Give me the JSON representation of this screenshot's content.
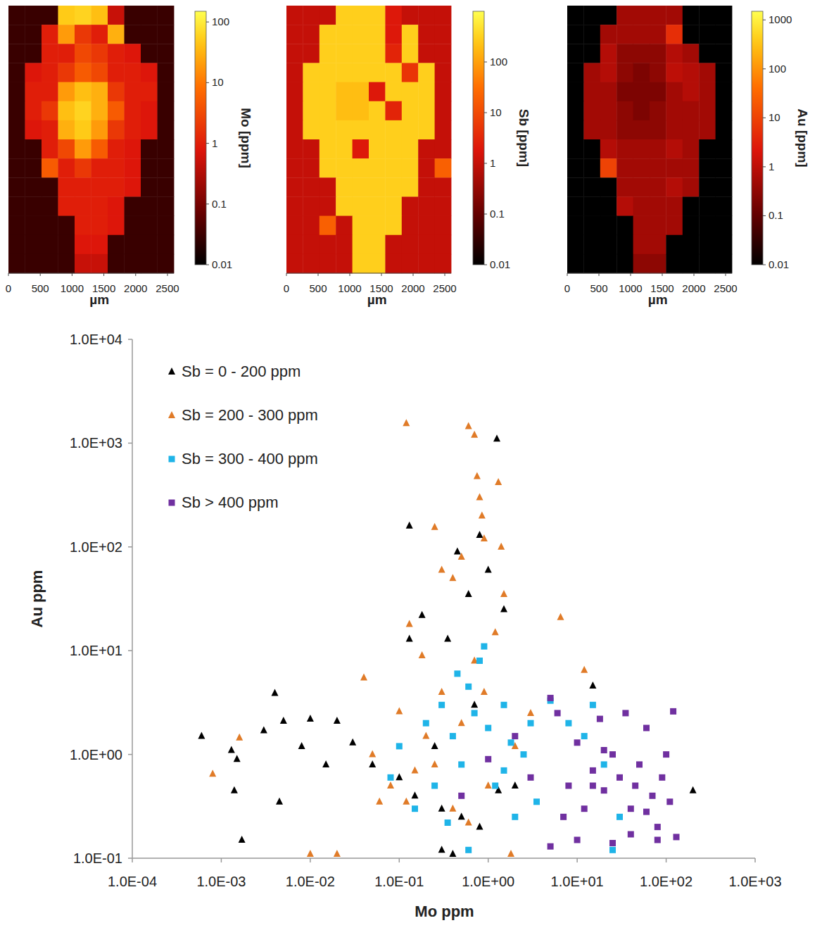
{
  "chart_data": [
    {
      "type": "heatmap",
      "xlabel": "µm",
      "xlim": [
        0,
        2600
      ],
      "xticks": [
        0,
        500,
        1000,
        1500,
        2000,
        2500
      ],
      "colorbar": {
        "label": "Mo [ppm]",
        "range": [
          0.01,
          150
        ],
        "ticks": [
          0.01,
          0.1,
          1,
          10,
          100
        ]
      },
      "cells": [
        [
          0.03,
          0.03,
          0.03,
          50,
          60,
          40,
          0.5,
          0.03,
          0.03,
          0.03
        ],
        [
          0.03,
          0.03,
          1,
          20,
          2,
          1,
          30,
          0.03,
          0.03,
          0.03
        ],
        [
          0.03,
          0.03,
          1,
          1,
          3,
          2,
          1,
          0.8,
          0.03,
          0.03
        ],
        [
          0.03,
          0.8,
          1,
          2,
          5,
          3,
          1,
          1,
          0.8,
          0.03
        ],
        [
          0.03,
          1,
          1,
          20,
          40,
          30,
          2,
          1,
          1,
          0.03
        ],
        [
          0.03,
          1,
          2,
          40,
          60,
          30,
          5,
          1,
          0.8,
          0.03
        ],
        [
          0.03,
          0.8,
          1,
          30,
          50,
          20,
          2,
          1,
          0.8,
          0.03
        ],
        [
          0.03,
          0.03,
          1,
          3,
          20,
          5,
          1,
          0.8,
          0.03,
          0.03
        ],
        [
          0.03,
          0.03,
          5,
          1,
          2,
          1,
          1,
          0.8,
          0.03,
          0.03
        ],
        [
          0.03,
          0.03,
          0.03,
          1,
          1,
          1,
          1,
          0.8,
          0.03,
          0.03
        ],
        [
          0.03,
          0.03,
          0.03,
          1,
          1,
          1,
          0.8,
          0.03,
          0.03,
          0.03
        ],
        [
          0.03,
          0.03,
          0.03,
          0.03,
          1,
          1,
          0.8,
          0.03,
          0.03,
          0.03
        ],
        [
          0.03,
          0.03,
          0.03,
          0.03,
          0.8,
          0.8,
          0.03,
          0.03,
          0.03,
          0.03
        ],
        [
          0.03,
          0.03,
          0.03,
          0.03,
          0.5,
          0.5,
          0.03,
          0.03,
          0.03,
          0.03
        ]
      ]
    },
    {
      "type": "heatmap",
      "xlabel": "µm",
      "xlim": [
        0,
        2600
      ],
      "xticks": [
        0,
        500,
        1000,
        1500,
        2000,
        2500
      ],
      "colorbar": {
        "label": "Sb [ppm]",
        "range": [
          0.01,
          1000
        ],
        "ticks": [
          0.01,
          0.1,
          1,
          10,
          100
        ]
      },
      "cells": [
        [
          1,
          1,
          1,
          300,
          300,
          300,
          2,
          1,
          1,
          1
        ],
        [
          1,
          1,
          300,
          300,
          300,
          300,
          2,
          300,
          1,
          1
        ],
        [
          1,
          1,
          300,
          300,
          300,
          300,
          3,
          300,
          1,
          1
        ],
        [
          1,
          300,
          300,
          300,
          300,
          300,
          300,
          5,
          300,
          1
        ],
        [
          1,
          300,
          300,
          200,
          200,
          2,
          300,
          300,
          300,
          1
        ],
        [
          1,
          300,
          300,
          200,
          200,
          300,
          3,
          300,
          300,
          1
        ],
        [
          1,
          300,
          300,
          300,
          300,
          300,
          300,
          300,
          300,
          1
        ],
        [
          1,
          1,
          300,
          300,
          2,
          300,
          300,
          300,
          1,
          1
        ],
        [
          1,
          1,
          300,
          300,
          300,
          300,
          300,
          300,
          1,
          20
        ],
        [
          1,
          1,
          1,
          300,
          300,
          300,
          300,
          300,
          1,
          1
        ],
        [
          1,
          1,
          1,
          300,
          300,
          300,
          300,
          1,
          1,
          1
        ],
        [
          1,
          1,
          20,
          1,
          300,
          300,
          300,
          1,
          1,
          1
        ],
        [
          1,
          1,
          1,
          1,
          300,
          300,
          1,
          1,
          1,
          1
        ],
        [
          1,
          1,
          1,
          1,
          300,
          300,
          1,
          1,
          1,
          1
        ]
      ]
    },
    {
      "type": "heatmap",
      "xlabel": "µm",
      "xlim": [
        0,
        2600
      ],
      "xticks": [
        0,
        500,
        1000,
        1500,
        2000,
        2500
      ],
      "colorbar": {
        "label": "Au [ppm]",
        "range": [
          0.01,
          1500
        ],
        "ticks": [
          0.01,
          0.1,
          1,
          10,
          100,
          1000
        ]
      },
      "cells": [
        [
          0.01,
          0.01,
          0.01,
          0.5,
          0.5,
          0.5,
          0.5,
          0.01,
          0.01,
          0.01
        ],
        [
          0.01,
          0.01,
          0.5,
          0.5,
          0.5,
          0.5,
          5,
          0.01,
          0.01,
          0.01
        ],
        [
          0.01,
          0.01,
          0.8,
          0.3,
          0.3,
          0.3,
          0.8,
          0.5,
          0.01,
          0.01
        ],
        [
          0.01,
          0.5,
          0.8,
          0.3,
          0.2,
          0.3,
          1,
          0.8,
          0.5,
          0.01
        ],
        [
          0.01,
          0.5,
          0.5,
          0.2,
          0.2,
          0.2,
          0.5,
          0.8,
          0.5,
          0.01
        ],
        [
          0.01,
          0.5,
          0.5,
          0.3,
          0.2,
          0.3,
          0.5,
          0.5,
          0.5,
          0.01
        ],
        [
          0.01,
          0.5,
          0.5,
          0.3,
          0.3,
          0.3,
          0.5,
          0.5,
          0.5,
          0.01
        ],
        [
          0.01,
          0.01,
          0.8,
          0.5,
          0.5,
          0.5,
          0.8,
          0.5,
          0.01,
          0.01
        ],
        [
          0.01,
          0.01,
          10,
          0.5,
          0.5,
          0.5,
          0.5,
          0.5,
          0.01,
          0.01
        ],
        [
          0.01,
          0.01,
          0.01,
          0.5,
          0.5,
          0.5,
          0.8,
          0.5,
          0.01,
          0.01
        ],
        [
          0.01,
          0.01,
          0.01,
          0.8,
          0.5,
          0.5,
          0.5,
          0.01,
          0.01,
          0.01
        ],
        [
          0.01,
          0.01,
          0.01,
          0.01,
          0.5,
          0.5,
          0.5,
          0.01,
          0.01,
          0.01
        ],
        [
          0.01,
          0.01,
          0.01,
          0.01,
          0.5,
          0.5,
          0.01,
          0.01,
          0.01,
          0.01
        ],
        [
          0.01,
          0.01,
          0.01,
          0.01,
          0.3,
          0.3,
          0.01,
          0.01,
          0.01,
          0.01
        ]
      ]
    },
    {
      "type": "scatter",
      "xlabel": "Mo ppm",
      "ylabel": "Au ppm",
      "log": true,
      "legend": "upper left",
      "xlim": [
        0.0001,
        1000
      ],
      "ylim": [
        0.1,
        10000
      ],
      "xticks": [
        {
          "value": 0.0001,
          "label": "1.0E-04"
        },
        {
          "value": 0.001,
          "label": "1.0E-03"
        },
        {
          "value": 0.01,
          "label": "1.0E-02"
        },
        {
          "value": 0.1,
          "label": "1.0E-01"
        },
        {
          "value": 1,
          "label": "1.0E+00"
        },
        {
          "value": 10,
          "label": "1.0E+01"
        },
        {
          "value": 100,
          "label": "1.0E+02"
        },
        {
          "value": 1000,
          "label": "1.0E+03"
        }
      ],
      "yticks": [
        {
          "value": 0.1,
          "label": "1.0E-01"
        },
        {
          "value": 1,
          "label": "1.0E+00"
        },
        {
          "value": 10,
          "label": "1.0E+01"
        },
        {
          "value": 100,
          "label": "1.0E+02"
        },
        {
          "value": 1000,
          "label": "1.0E+03"
        },
        {
          "value": 10000,
          "label": "1.0E+04"
        }
      ],
      "series": [
        {
          "name": "Sb = 0 - 200 ppm",
          "color": "#000000",
          "marker": "triangle",
          "x": [
            0.0006,
            0.0013,
            0.0015,
            0.0017,
            0.0014,
            0.003,
            0.004,
            0.005,
            0.0045,
            0.008,
            0.01,
            0.015,
            0.02,
            0.03,
            0.05,
            0.1,
            0.13,
            0.15,
            0.18,
            0.3,
            0.35,
            0.45,
            0.6,
            0.8,
            1,
            1.25,
            1.5,
            2,
            0.3,
            0.5,
            0.8,
            1.3,
            200,
            15,
            0.13,
            0.4,
            0.7,
            0.25
          ],
          "values": [
            1.5,
            1.1,
            0.9,
            0.15,
            0.45,
            1.7,
            3.9,
            2.1,
            0.35,
            1.2,
            2.2,
            0.8,
            2.1,
            1.3,
            0.8,
            0.6,
            160,
            0.4,
            22,
            0.3,
            13,
            90,
            35,
            0.2,
            60,
            1100,
            25,
            0.5,
            0.12,
            0.25,
            130,
            0.45,
            0.45,
            4.6,
            13,
            0.11,
            3,
            1.2
          ]
        },
        {
          "name": "Sb = 200 - 300 ppm",
          "color": "#e07b28",
          "marker": "triangle",
          "x": [
            0.0008,
            0.0016,
            0.01,
            0.02,
            0.04,
            0.05,
            0.08,
            0.1,
            0.12,
            0.13,
            0.18,
            0.25,
            0.3,
            0.4,
            0.5,
            0.6,
            0.7,
            0.75,
            0.8,
            0.85,
            0.9,
            1.3,
            1.4,
            1.5,
            1.2,
            0.7,
            0.3,
            0.2,
            0.15,
            0.4,
            0.6,
            1,
            2,
            3,
            6.5,
            12,
            0.5,
            0.9,
            0.12,
            1.8,
            0.25,
            0.06
          ],
          "values": [
            0.65,
            1.45,
            0.11,
            0.11,
            5.5,
            1,
            0.5,
            2.6,
            1550,
            18,
            9,
            155,
            60,
            50,
            80,
            1450,
            1200,
            480,
            300,
            200,
            120,
            420,
            100,
            35,
            15,
            8,
            4,
            1.5,
            0.7,
            0.3,
            0.22,
            0.5,
            1.2,
            2.5,
            21,
            6.5,
            2,
            4,
            0.35,
            0.11,
            0.8,
            0.35
          ]
        },
        {
          "name": "Sb = 300 - 400 ppm",
          "color": "#1fb4e8",
          "marker": "square",
          "x": [
            0.08,
            0.1,
            0.15,
            0.2,
            0.3,
            0.4,
            0.5,
            0.6,
            0.7,
            0.8,
            0.9,
            1,
            1.2,
            1.5,
            2,
            2.5,
            3,
            5,
            8,
            12,
            15,
            20,
            30,
            25,
            0.35,
            0.6,
            1.5,
            3.5,
            0.25,
            1.8,
            0.45
          ],
          "values": [
            0.6,
            1.2,
            0.3,
            2,
            3,
            1.5,
            0.8,
            4.5,
            2.5,
            8,
            11,
            1.8,
            0.5,
            3,
            0.25,
            1,
            2,
            3.3,
            2,
            1.5,
            3,
            0.8,
            0.25,
            0.12,
            0.22,
            0.12,
            0.7,
            0.35,
            0.5,
            1.3,
            6
          ]
        },
        {
          "name": "Sb > 400 ppm",
          "color": "#7030a0",
          "marker": "square",
          "x": [
            0.5,
            1,
            2,
            3,
            5,
            6,
            8,
            10,
            12,
            15,
            18,
            20,
            25,
            30,
            35,
            40,
            50,
            60,
            70,
            80,
            100,
            120,
            110,
            130,
            5,
            10,
            40,
            80,
            15,
            25,
            45,
            60,
            7,
            20,
            90
          ],
          "values": [
            0.4,
            0.9,
            1.5,
            0.6,
            3.5,
            2.5,
            0.5,
            1.3,
            0.3,
            0.7,
            2.2,
            0.45,
            0.14,
            0.6,
            2.5,
            0.3,
            0.8,
            1.8,
            0.4,
            0.2,
            1,
            2.6,
            0.35,
            0.16,
            0.13,
            0.15,
            0.17,
            0.15,
            0.5,
            1,
            0.5,
            0.28,
            0.25,
            1.1,
            0.6
          ]
        }
      ]
    }
  ]
}
